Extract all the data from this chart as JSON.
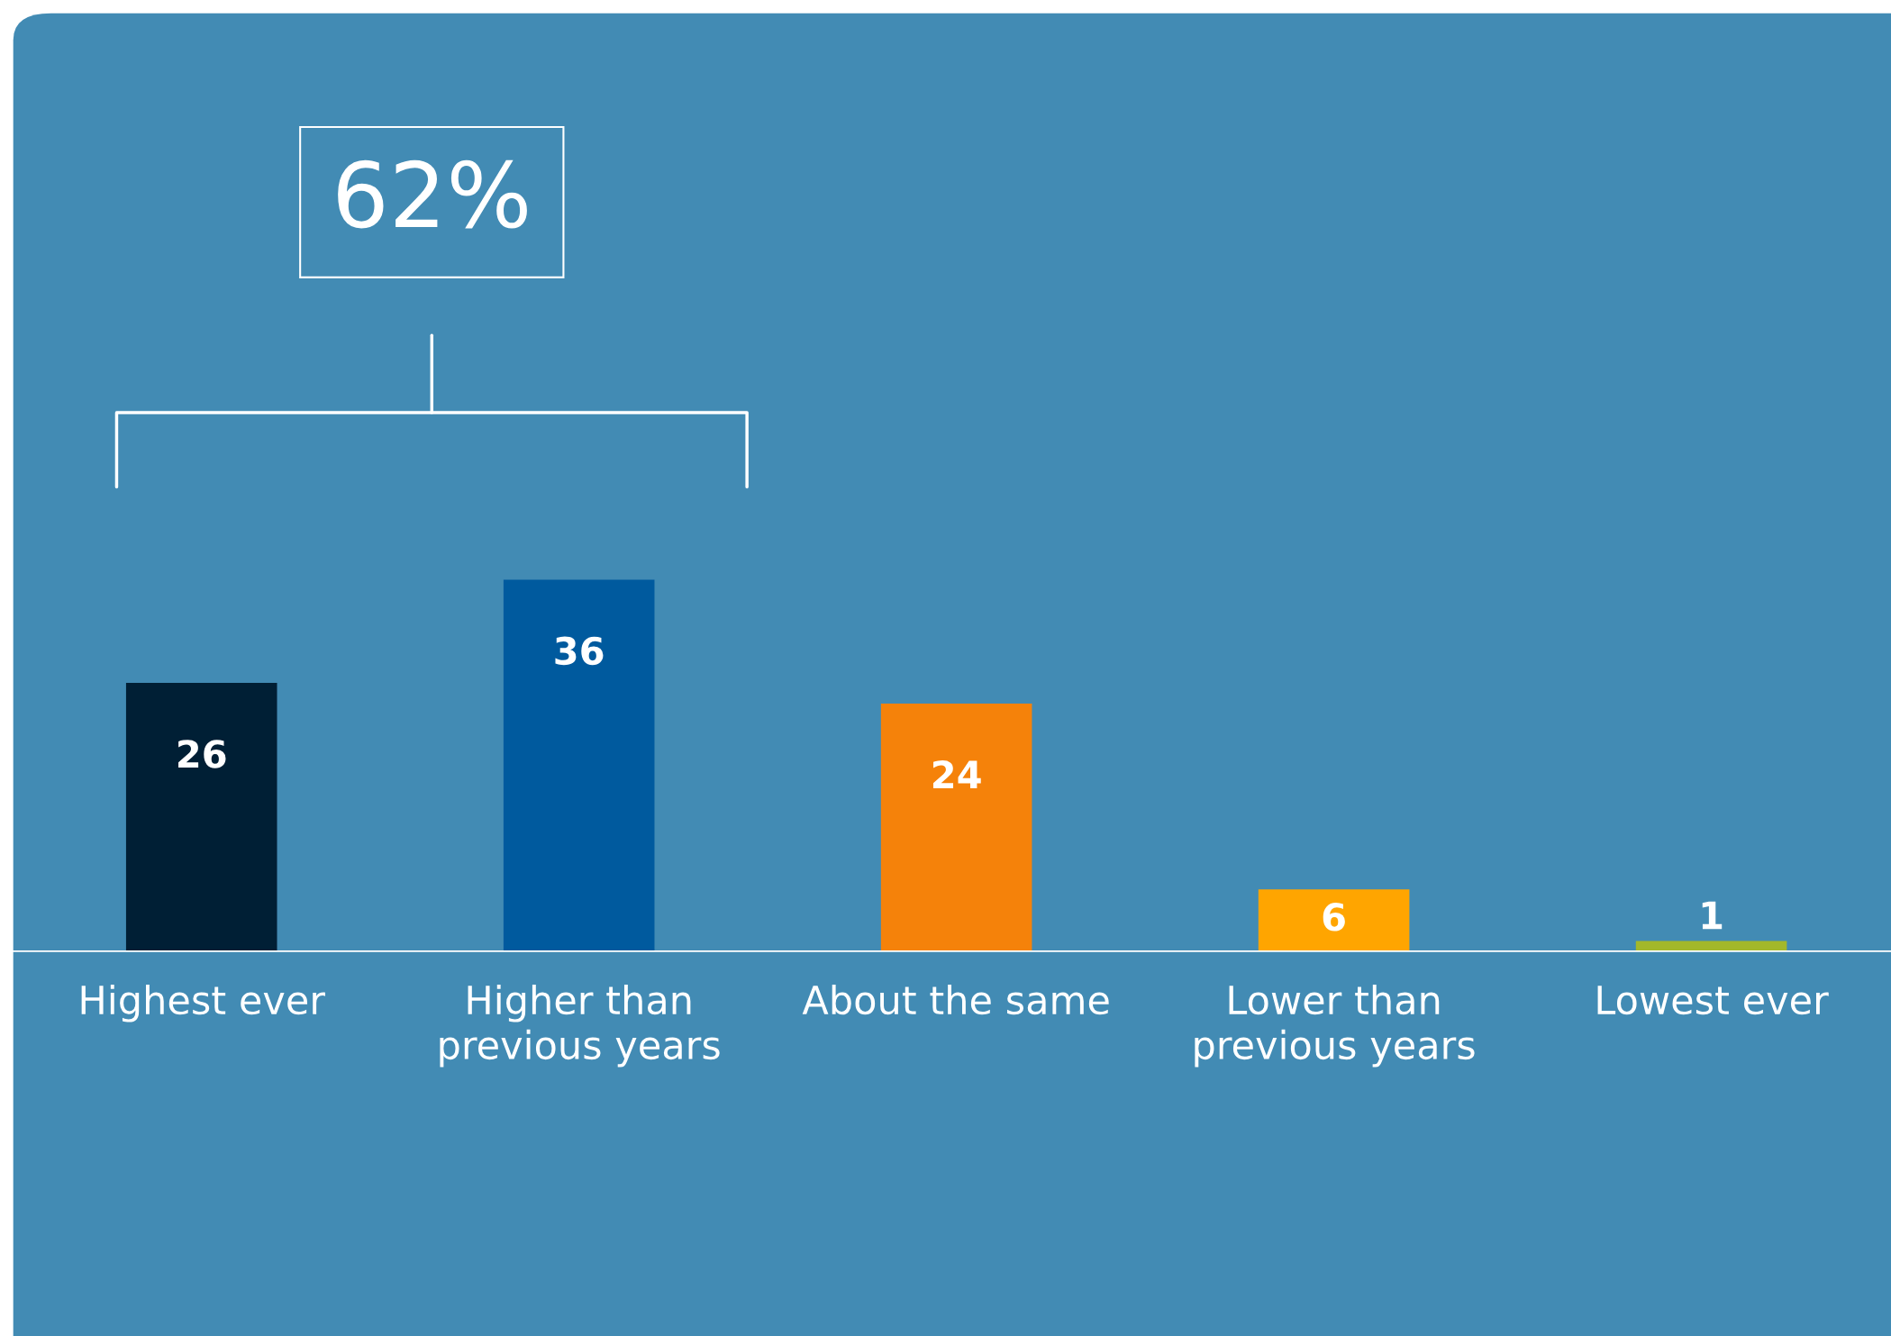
{
  "chart_data": {
    "type": "bar",
    "categories": [
      "Highest ever",
      "Higher than\nprevious years",
      "About the same",
      "Lower than\nprevious years",
      "Lowest ever"
    ],
    "values": [
      26,
      36,
      24,
      6,
      1
    ],
    "colors": [
      "#001f35",
      "#005a9e",
      "#f5820a",
      "#ffa500",
      "#a3b82a"
    ],
    "data_labels": true,
    "annotations": [
      "62%"
    ]
  }
}
